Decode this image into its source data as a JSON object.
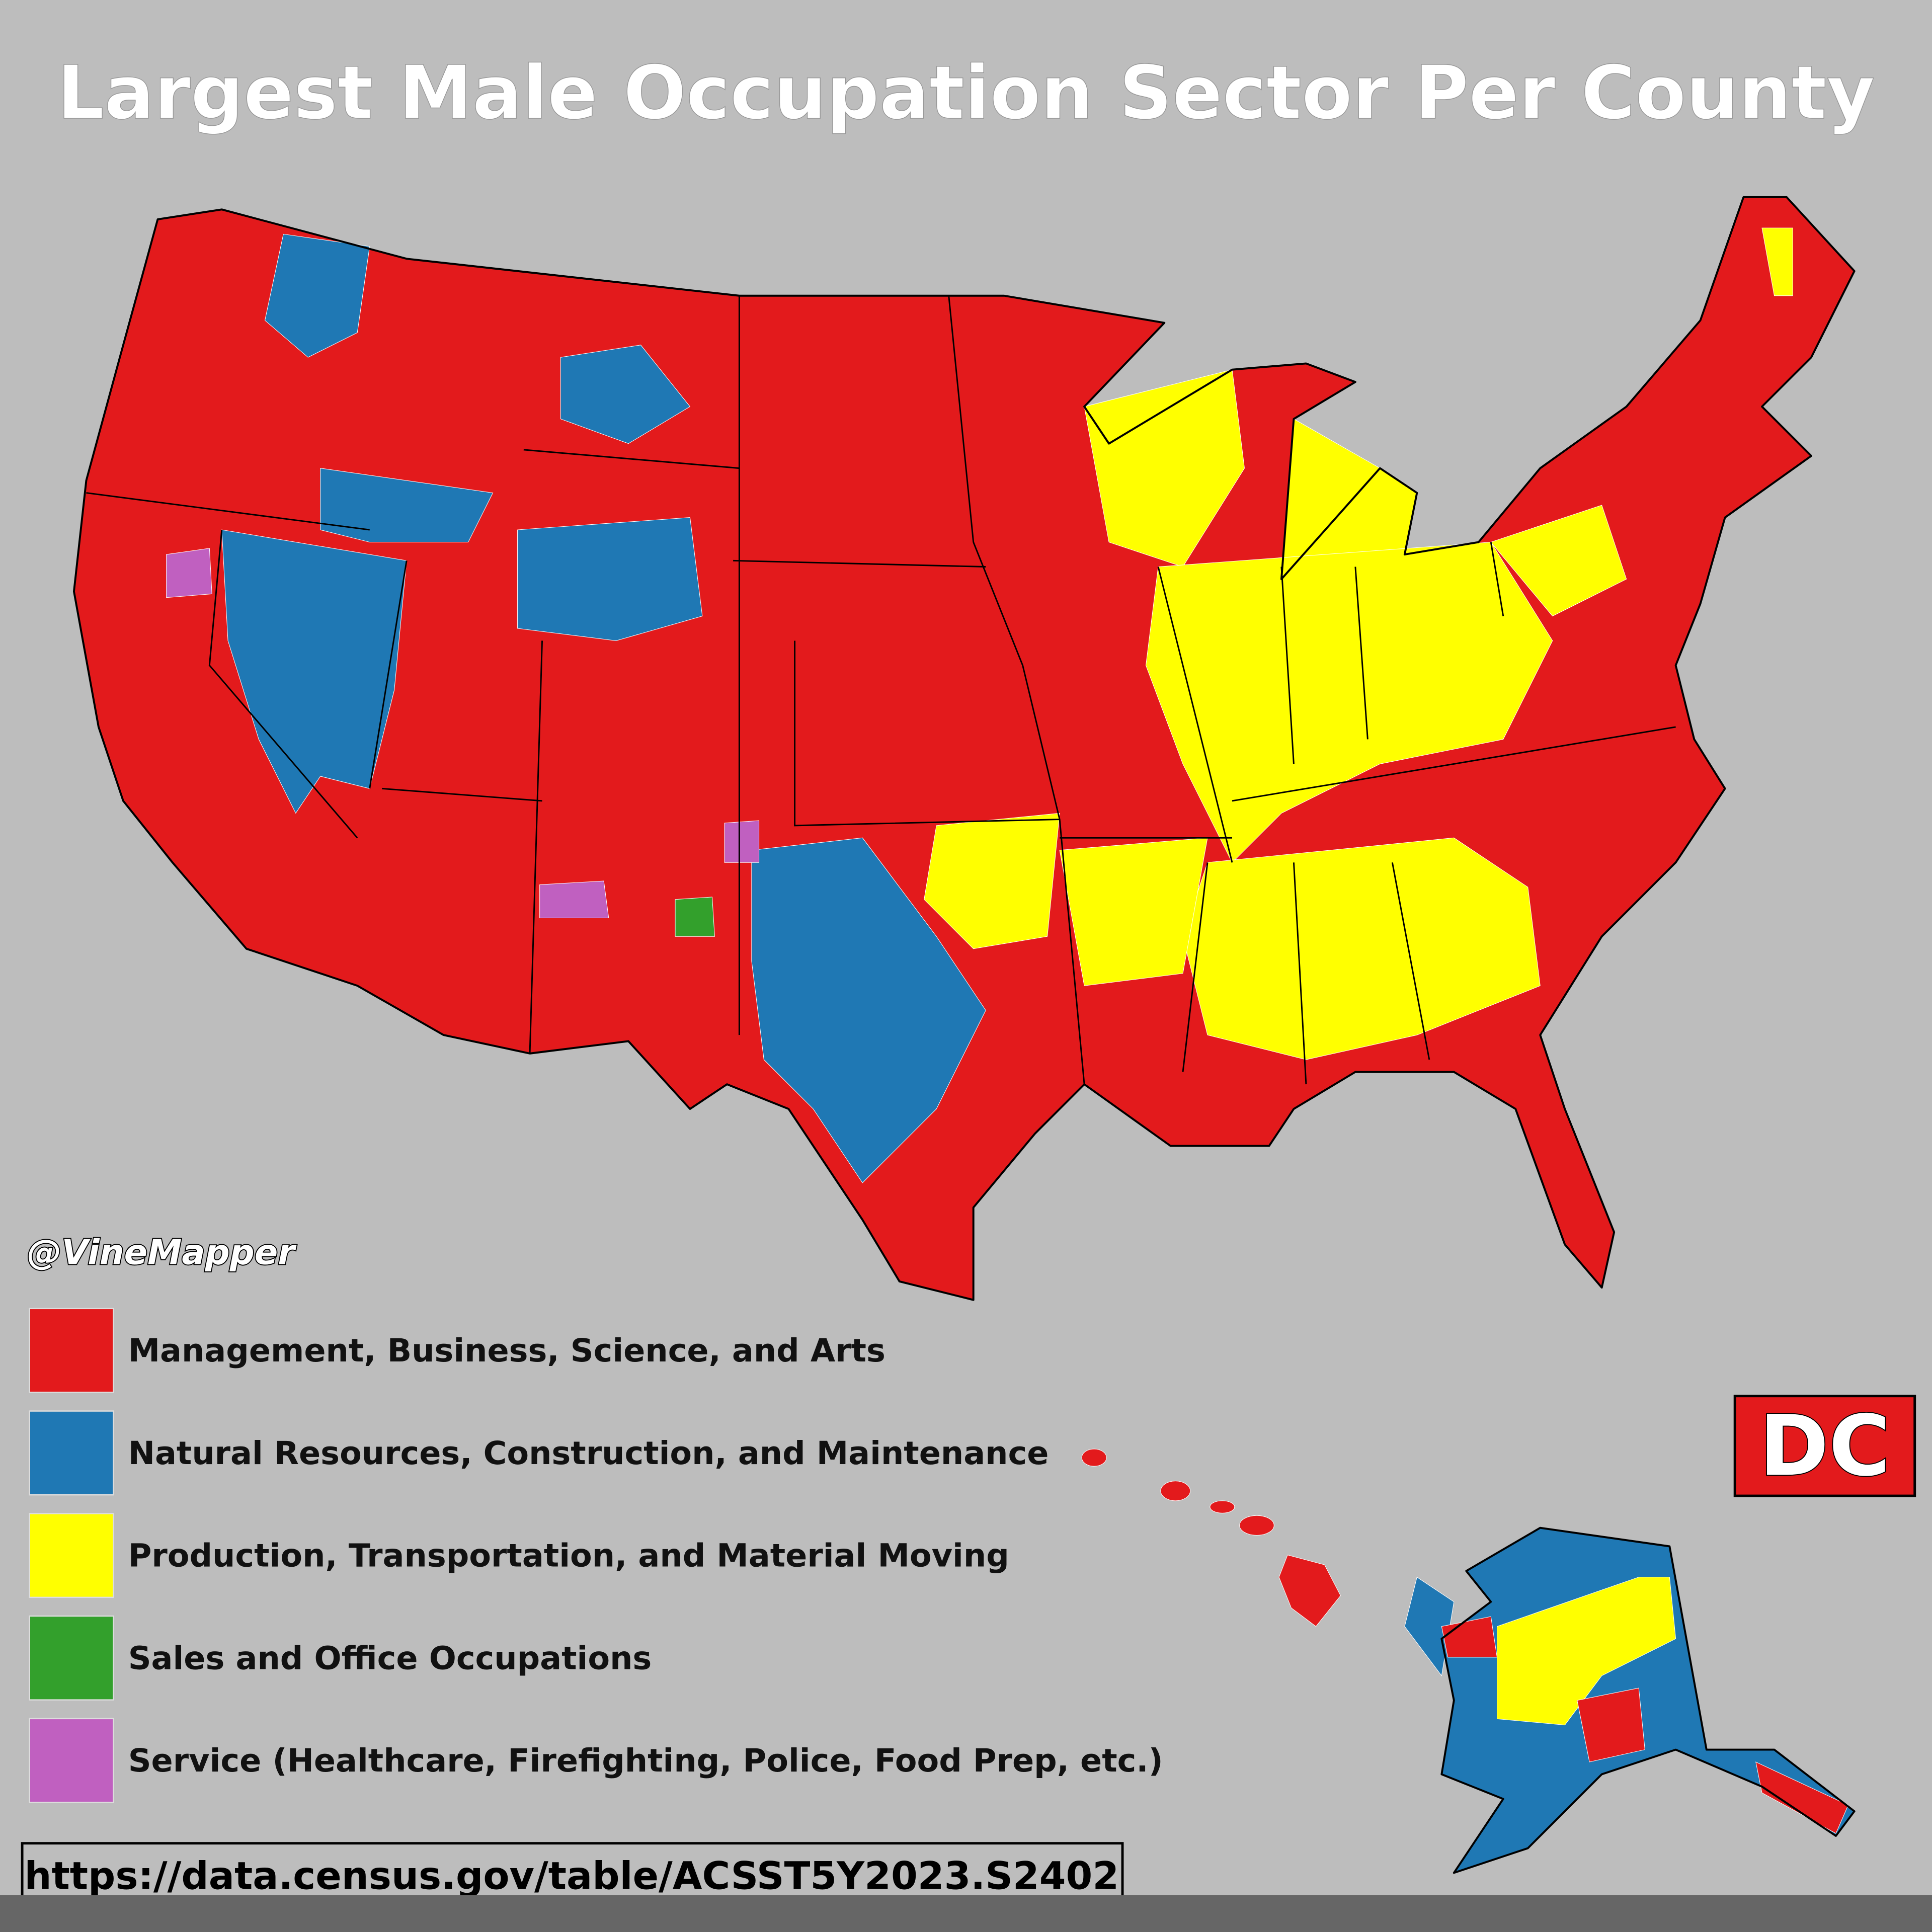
{
  "title": "Largest Male Occupation Sector Per County",
  "attribution": "@VineMapper",
  "legend": [
    {
      "label": "Management, Business, Science, and Arts",
      "color": "#e31a1c"
    },
    {
      "label": "Natural Resources, Construction, and Maintenance",
      "color": "#1f78b4"
    },
    {
      "label": "Production, Transportation, and Material Moving",
      "color": "#ffff00"
    },
    {
      "label": "Sales and Office Occupations",
      "color": "#33a02c"
    },
    {
      "label": "Service (Healthcare, Firefighting, Police, Food Prep, etc.)",
      "color": "#c060c0"
    }
  ],
  "inset_label": "DC",
  "source": "https://data.census.gov/table/ACSST5Y2023.S2402"
}
